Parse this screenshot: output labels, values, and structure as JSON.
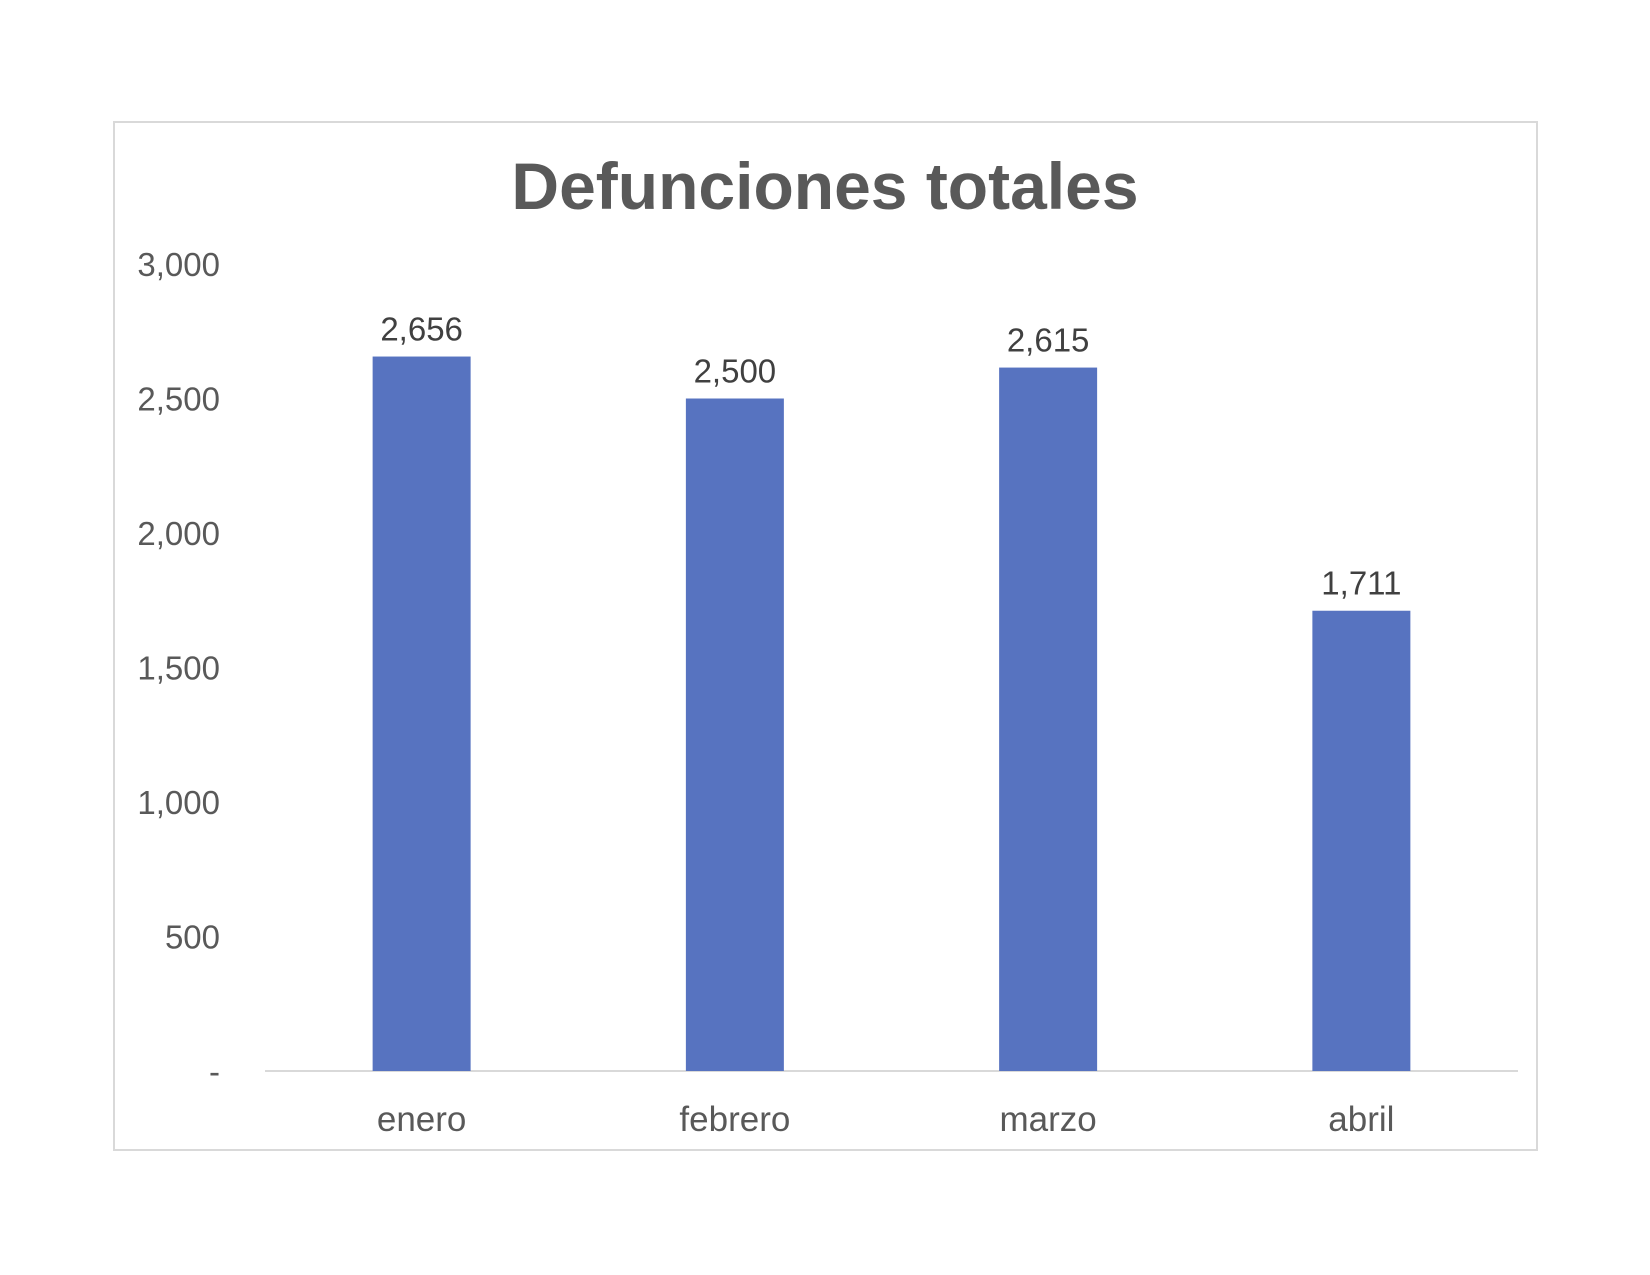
{
  "chart_data": {
    "type": "bar",
    "title": "Defunciones totales",
    "categories": [
      "enero",
      "febrero",
      "marzo",
      "abril"
    ],
    "values": [
      2656,
      2500,
      2615,
      1711
    ],
    "data_labels": [
      "2,656",
      "2,500",
      "2,615",
      "1,711"
    ],
    "ylim": [
      0,
      3000
    ],
    "yticks": [
      0,
      500,
      1000,
      1500,
      2000,
      2500,
      3000
    ],
    "ytick_labels": [
      "-",
      "500",
      "1,000",
      "1,500",
      "2,000",
      "2,500",
      "3,000"
    ],
    "bar_color": "#5773c0",
    "grid": false,
    "legend": "none"
  }
}
